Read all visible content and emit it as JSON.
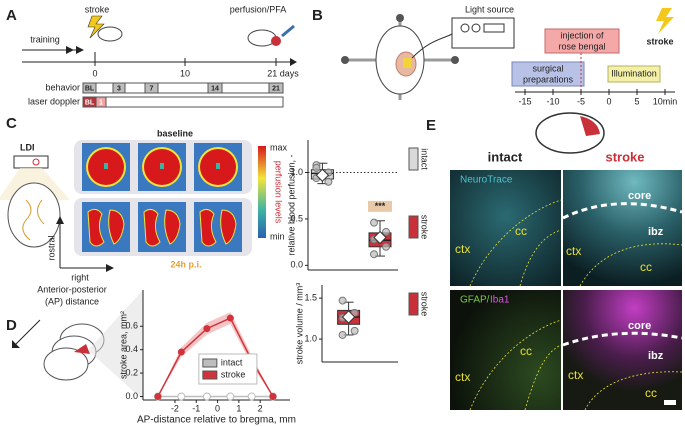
{
  "panels": {
    "a": {
      "letter": "A",
      "training": "training",
      "stroke": "stroke",
      "perfusion": "perfusion/PFA",
      "ticks": [
        "0",
        "10",
        "21 days"
      ],
      "behavior": "behavior",
      "behavior_days": [
        "BL",
        "3",
        "7",
        "14",
        "21"
      ],
      "laser": "laser doppler",
      "laser_days": [
        "BL",
        "1"
      ]
    },
    "b": {
      "letter": "B",
      "light": "Light source",
      "surgical": [
        "surgical",
        "preparations"
      ],
      "injection": [
        "injection of",
        "rose bengal"
      ],
      "illumination": "Illumination",
      "stroke": "stroke",
      "ticks": [
        "-15",
        "-10",
        "-5",
        "0",
        "5",
        "10min"
      ]
    },
    "c": {
      "letter": "C",
      "ldi": "LDI",
      "baseline": "baseline",
      "post": "24h p.i.",
      "rostral": "rostral",
      "right": "right",
      "cbar_max": "max",
      "cbar_label": "perfusion levels",
      "cbar_min": "min"
    },
    "d": {
      "letter": "D",
      "ap": [
        "Anterior-posterior",
        "(AP) distance"
      ]
    },
    "e": {
      "letter": "E",
      "intact": "intact",
      "stroke": "stroke",
      "stain_top": "NeuroTrace",
      "stain_bottom": [
        "GFAP/",
        "Iba1"
      ],
      "top_left": [
        "ctx",
        "cc"
      ],
      "top_right": [
        "core",
        "ibz",
        "ctx",
        "cc"
      ],
      "bottom_left": [
        "ctx",
        "cc"
      ],
      "bottom_right": [
        "core",
        "ibz",
        "ctx",
        "cc"
      ]
    }
  },
  "chart_data": [
    {
      "type": "box",
      "ylabel": "relative blood perfusion, -",
      "ylim": [
        -0.05,
        1.35
      ],
      "yticks": [
        {
          "value": 0,
          "label": "0.0"
        },
        {
          "value": 0.5,
          "label": "0.5"
        },
        {
          "value": 1,
          "label": "1.0"
        }
      ],
      "reference_line": 1,
      "annotation": "***",
      "legend": "right",
      "series": [
        {
          "name": "intact",
          "color": "#d9d9d9",
          "whisker_low": 0.88,
          "q1": 0.93,
          "median": 0.99,
          "q3": 1.03,
          "whisker_high": 1.1,
          "mean": 0.97,
          "points": [
            1.08,
            1.0,
            0.94,
            0.9,
            1.05
          ]
        },
        {
          "name": "stroke",
          "color": "#c8303a",
          "whisker_low": 0.1,
          "q1": 0.2,
          "median": 0.27,
          "q3": 0.35,
          "whisker_high": 0.48,
          "mean": 0.3,
          "points": [
            0.46,
            0.36,
            0.28,
            0.2,
            0.12
          ]
        }
      ]
    },
    {
      "type": "line",
      "xlabel": "AP-distance relative to bregma, mm",
      "ylabel": "stroke area, mm²",
      "x": [
        -2.8,
        -1.7,
        -0.5,
        0.6,
        1.6,
        2.6
      ],
      "xlim": [
        -3.5,
        3.4
      ],
      "xticks": [
        -2,
        -1,
        0,
        1,
        2
      ],
      "ylim": [
        -0.03,
        0.91
      ],
      "yticks": [
        {
          "value": 0,
          "label": "0.0"
        },
        0.2,
        0.4,
        0.6
      ],
      "legend": "center",
      "series": [
        {
          "name": "intact",
          "color": "#bdbdbd",
          "values": [
            0,
            0,
            0,
            0,
            0,
            0
          ]
        },
        {
          "name": "stroke",
          "color": "#d0333c",
          "band_color": "#f2b6b6",
          "values": [
            0,
            0.38,
            0.58,
            0.67,
            0.31,
            0
          ],
          "errors": [
            0,
            0.04,
            0.05,
            0.05,
            0.04,
            0
          ]
        }
      ]
    },
    {
      "type": "box",
      "ylabel": "stroke volume / mm³",
      "ylim": [
        0.72,
        1.66
      ],
      "yticks": [
        {
          "value": 1,
          "label": "1.0"
        },
        {
          "value": 1.5,
          "label": "1.5"
        }
      ],
      "legend": "right",
      "series": [
        {
          "name": "stroke",
          "color": "#c8303a",
          "whisker_low": 1.05,
          "q1": 1.18,
          "median": 1.27,
          "q3": 1.35,
          "whisker_high": 1.45,
          "mean": 1.27,
          "points": [
            1.47,
            1.32,
            1.26,
            1.1,
            1.05
          ]
        }
      ]
    }
  ]
}
